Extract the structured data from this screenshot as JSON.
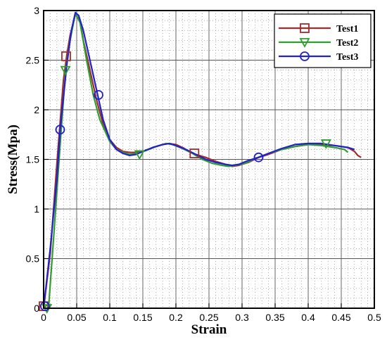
{
  "chart_data": {
    "type": "line",
    "title": "",
    "xlabel": "Strain",
    "ylabel": "Stress(Mpa)",
    "xlim": [
      0,
      0.5
    ],
    "ylim": [
      0,
      3
    ],
    "x_ticks": [
      0,
      0.05,
      0.1,
      0.15,
      0.2,
      0.25,
      0.3,
      0.35,
      0.4,
      0.45,
      0.5
    ],
    "x_tick_labels": [
      "0",
      "0.05",
      "0.1",
      "0.15",
      "0.2",
      "0.25",
      "0.3",
      "0.35",
      "0.4",
      "0.45",
      "0.5"
    ],
    "y_ticks": [
      0,
      0.5,
      1,
      1.5,
      2,
      2.5,
      3
    ],
    "y_tick_labels": [
      "0",
      "0.5",
      "1",
      "1.5",
      "2",
      "2.5",
      "3"
    ],
    "grid": true,
    "legend_position": "top-right",
    "series": [
      {
        "name": "Test1",
        "color": "#a52a2a",
        "marker": "square",
        "points": [
          [
            0.0,
            0.0
          ],
          [
            0.01,
            0.55
          ],
          [
            0.02,
            1.45
          ],
          [
            0.03,
            2.3
          ],
          [
            0.035,
            2.55
          ],
          [
            0.04,
            2.75
          ],
          [
            0.048,
            2.96
          ],
          [
            0.055,
            2.9
          ],
          [
            0.06,
            2.7
          ],
          [
            0.07,
            2.4
          ],
          [
            0.08,
            2.1
          ],
          [
            0.09,
            1.85
          ],
          [
            0.1,
            1.7
          ],
          [
            0.11,
            1.62
          ],
          [
            0.12,
            1.58
          ],
          [
            0.13,
            1.57
          ],
          [
            0.14,
            1.57
          ],
          [
            0.15,
            1.58
          ],
          [
            0.165,
            1.62
          ],
          [
            0.18,
            1.65
          ],
          [
            0.19,
            1.66
          ],
          [
            0.2,
            1.65
          ],
          [
            0.21,
            1.62
          ],
          [
            0.22,
            1.58
          ],
          [
            0.23,
            1.55
          ],
          [
            0.245,
            1.52
          ],
          [
            0.26,
            1.48
          ],
          [
            0.275,
            1.45
          ],
          [
            0.285,
            1.43
          ],
          [
            0.295,
            1.44
          ],
          [
            0.31,
            1.47
          ],
          [
            0.325,
            1.52
          ],
          [
            0.34,
            1.55
          ],
          [
            0.36,
            1.6
          ],
          [
            0.38,
            1.63
          ],
          [
            0.4,
            1.65
          ],
          [
            0.42,
            1.65
          ],
          [
            0.44,
            1.64
          ],
          [
            0.46,
            1.62
          ],
          [
            0.47,
            1.58
          ],
          [
            0.475,
            1.54
          ],
          [
            0.48,
            1.52
          ]
        ],
        "marker_points": [
          [
            0.0,
            0.02
          ],
          [
            0.034,
            2.54
          ],
          [
            0.228,
            1.56
          ]
        ]
      },
      {
        "name": "Test2",
        "color": "#2e9e2e",
        "marker": "triangle-down",
        "points": [
          [
            0.0,
            0.0
          ],
          [
            0.008,
            0.05
          ],
          [
            0.015,
            0.7
          ],
          [
            0.025,
            1.65
          ],
          [
            0.033,
            2.38
          ],
          [
            0.04,
            2.7
          ],
          [
            0.048,
            2.97
          ],
          [
            0.055,
            2.88
          ],
          [
            0.065,
            2.5
          ],
          [
            0.075,
            2.15
          ],
          [
            0.085,
            1.9
          ],
          [
            0.1,
            1.68
          ],
          [
            0.11,
            1.6
          ],
          [
            0.12,
            1.57
          ],
          [
            0.13,
            1.55
          ],
          [
            0.14,
            1.56
          ],
          [
            0.155,
            1.59
          ],
          [
            0.17,
            1.63
          ],
          [
            0.185,
            1.66
          ],
          [
            0.195,
            1.65
          ],
          [
            0.21,
            1.61
          ],
          [
            0.225,
            1.56
          ],
          [
            0.24,
            1.5
          ],
          [
            0.255,
            1.46
          ],
          [
            0.27,
            1.44
          ],
          [
            0.28,
            1.43
          ],
          [
            0.29,
            1.44
          ],
          [
            0.305,
            1.46
          ],
          [
            0.32,
            1.51
          ],
          [
            0.34,
            1.56
          ],
          [
            0.36,
            1.6
          ],
          [
            0.38,
            1.63
          ],
          [
            0.4,
            1.65
          ],
          [
            0.42,
            1.64
          ],
          [
            0.44,
            1.62
          ],
          [
            0.455,
            1.6
          ],
          [
            0.46,
            1.57
          ]
        ],
        "marker_points": [
          [
            0.005,
            0.0
          ],
          [
            0.033,
            2.4
          ],
          [
            0.145,
            1.55
          ],
          [
            0.427,
            1.66
          ]
        ]
      },
      {
        "name": "Test3",
        "color": "#2222cc",
        "marker": "circle",
        "points": [
          [
            0.0,
            0.0
          ],
          [
            0.01,
            0.6
          ],
          [
            0.02,
            1.3
          ],
          [
            0.025,
            1.8
          ],
          [
            0.035,
            2.45
          ],
          [
            0.042,
            2.8
          ],
          [
            0.048,
            2.98
          ],
          [
            0.053,
            2.95
          ],
          [
            0.06,
            2.8
          ],
          [
            0.07,
            2.5
          ],
          [
            0.08,
            2.2
          ],
          [
            0.09,
            1.9
          ],
          [
            0.1,
            1.7
          ],
          [
            0.11,
            1.6
          ],
          [
            0.12,
            1.56
          ],
          [
            0.13,
            1.54
          ],
          [
            0.14,
            1.55
          ],
          [
            0.15,
            1.58
          ],
          [
            0.165,
            1.62
          ],
          [
            0.18,
            1.65
          ],
          [
            0.19,
            1.66
          ],
          [
            0.2,
            1.64
          ],
          [
            0.215,
            1.6
          ],
          [
            0.23,
            1.55
          ],
          [
            0.245,
            1.5
          ],
          [
            0.26,
            1.47
          ],
          [
            0.275,
            1.45
          ],
          [
            0.285,
            1.44
          ],
          [
            0.295,
            1.45
          ],
          [
            0.31,
            1.49
          ],
          [
            0.325,
            1.52
          ],
          [
            0.34,
            1.56
          ],
          [
            0.36,
            1.61
          ],
          [
            0.38,
            1.65
          ],
          [
            0.4,
            1.66
          ],
          [
            0.42,
            1.66
          ],
          [
            0.44,
            1.64
          ],
          [
            0.46,
            1.62
          ],
          [
            0.47,
            1.6
          ]
        ],
        "marker_points": [
          [
            0.002,
            0.02
          ],
          [
            0.025,
            1.8
          ],
          [
            0.083,
            2.15
          ],
          [
            0.325,
            1.52
          ]
        ]
      }
    ]
  }
}
